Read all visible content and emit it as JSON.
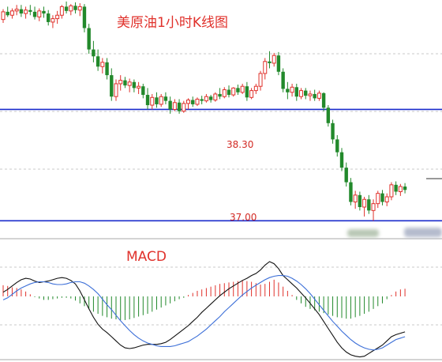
{
  "chart_data": [
    {
      "type": "candlestick",
      "title": "美原油1小时K线图",
      "levels": [
        {
          "label": "38.30",
          "value": 38.3
        },
        {
          "label": "37.00",
          "value": 37.0
        }
      ],
      "price_range": [
        36.92,
        39.55
      ],
      "ohlc": [
        [
          39.35,
          39.47,
          39.31,
          39.44
        ],
        [
          39.44,
          39.5,
          39.38,
          39.4
        ],
        [
          39.4,
          39.48,
          39.36,
          39.45
        ],
        [
          39.45,
          39.52,
          39.4,
          39.47
        ],
        [
          39.47,
          39.52,
          39.38,
          39.42
        ],
        [
          39.42,
          39.5,
          39.36,
          39.46
        ],
        [
          39.46,
          39.52,
          39.4,
          39.44
        ],
        [
          39.44,
          39.5,
          39.35,
          39.38
        ],
        [
          39.38,
          39.48,
          39.33,
          39.45
        ],
        [
          39.45,
          39.5,
          39.37,
          39.42
        ],
        [
          39.42,
          39.46,
          39.28,
          39.32
        ],
        [
          39.32,
          39.4,
          39.25,
          39.36
        ],
        [
          39.36,
          39.45,
          39.3,
          39.4
        ],
        [
          39.4,
          39.52,
          39.36,
          39.5
        ],
        [
          39.5,
          39.56,
          39.42,
          39.45
        ],
        [
          39.45,
          39.53,
          39.4,
          39.51
        ],
        [
          39.51,
          39.55,
          39.42,
          39.46
        ],
        [
          39.46,
          39.54,
          39.39,
          39.5
        ],
        [
          39.5,
          39.53,
          39.2,
          39.25
        ],
        [
          39.25,
          39.3,
          38.95,
          39.0
        ],
        [
          39.0,
          39.1,
          38.85,
          38.92
        ],
        [
          38.92,
          39.0,
          38.75,
          38.8
        ],
        [
          38.8,
          38.9,
          38.72,
          38.85
        ],
        [
          38.85,
          38.9,
          38.65,
          38.7
        ],
        [
          38.7,
          38.78,
          38.4,
          38.45
        ],
        [
          38.45,
          38.65,
          38.4,
          38.6
        ],
        [
          38.6,
          38.7,
          38.52,
          38.64
        ],
        [
          38.64,
          38.68,
          38.55,
          38.58
        ],
        [
          38.58,
          38.66,
          38.5,
          38.62
        ],
        [
          38.62,
          38.65,
          38.5,
          38.55
        ],
        [
          38.55,
          38.62,
          38.48,
          38.57
        ],
        [
          38.57,
          38.6,
          38.43,
          38.47
        ],
        [
          38.47,
          38.55,
          38.3,
          38.35
        ],
        [
          38.35,
          38.48,
          38.3,
          38.44
        ],
        [
          38.44,
          38.5,
          38.32,
          38.36
        ],
        [
          38.36,
          38.48,
          38.33,
          38.45
        ],
        [
          38.45,
          38.5,
          38.36,
          38.4
        ],
        [
          38.4,
          38.45,
          38.25,
          38.3
        ],
        [
          38.3,
          38.42,
          38.28,
          38.38
        ],
        [
          38.38,
          38.42,
          38.25,
          38.28
        ],
        [
          38.28,
          38.4,
          38.26,
          38.37
        ],
        [
          38.37,
          38.43,
          38.3,
          38.41
        ],
        [
          38.41,
          38.45,
          38.33,
          38.36
        ],
        [
          38.36,
          38.44,
          38.34,
          38.42
        ],
        [
          38.42,
          38.46,
          38.36,
          38.4
        ],
        [
          38.4,
          38.48,
          38.38,
          38.45
        ],
        [
          38.45,
          38.47,
          38.38,
          38.41
        ],
        [
          38.41,
          38.5,
          38.39,
          38.48
        ],
        [
          38.48,
          38.55,
          38.42,
          38.45
        ],
        [
          38.45,
          38.56,
          38.43,
          38.53
        ],
        [
          38.53,
          38.58,
          38.44,
          38.47
        ],
        [
          38.47,
          38.56,
          38.45,
          38.55
        ],
        [
          38.55,
          38.59,
          38.47,
          38.5
        ],
        [
          38.5,
          38.6,
          38.48,
          38.57
        ],
        [
          38.57,
          38.62,
          38.4,
          38.44
        ],
        [
          38.44,
          38.55,
          38.42,
          38.52
        ],
        [
          38.52,
          38.6,
          38.48,
          38.57
        ],
        [
          38.57,
          38.75,
          38.52,
          38.72
        ],
        [
          38.72,
          38.9,
          38.65,
          38.86
        ],
        [
          38.86,
          38.98,
          38.78,
          38.84
        ],
        [
          38.84,
          38.96,
          38.8,
          38.93
        ],
        [
          38.93,
          38.97,
          38.7,
          38.74
        ],
        [
          38.74,
          38.78,
          38.5,
          38.54
        ],
        [
          38.54,
          38.62,
          38.42,
          38.5
        ],
        [
          38.5,
          38.6,
          38.45,
          38.56
        ],
        [
          38.56,
          38.6,
          38.4,
          38.45
        ],
        [
          38.45,
          38.55,
          38.42,
          38.52
        ],
        [
          38.52,
          38.55,
          38.42,
          38.46
        ],
        [
          38.46,
          38.52,
          38.4,
          38.48
        ],
        [
          38.48,
          38.53,
          38.4,
          38.43
        ],
        [
          38.43,
          38.52,
          38.4,
          38.49
        ],
        [
          38.49,
          38.5,
          38.28,
          38.32
        ],
        [
          38.32,
          38.35,
          38.1,
          38.14
        ],
        [
          38.14,
          38.18,
          37.9,
          37.95
        ],
        [
          37.95,
          38.0,
          37.75,
          37.8
        ],
        [
          37.8,
          37.85,
          37.58,
          37.62
        ],
        [
          37.62,
          37.68,
          37.4,
          37.45
        ],
        [
          37.45,
          37.5,
          37.18,
          37.22
        ],
        [
          37.22,
          37.35,
          37.14,
          37.3
        ],
        [
          37.3,
          37.34,
          37.12,
          37.16
        ],
        [
          37.16,
          37.28,
          37.05,
          37.25
        ],
        [
          37.25,
          37.3,
          37.08,
          37.12
        ],
        [
          37.12,
          37.25,
          37.0,
          37.2
        ],
        [
          37.2,
          37.35,
          37.15,
          37.32
        ],
        [
          37.32,
          37.36,
          37.18,
          37.22
        ],
        [
          37.22,
          37.32,
          37.17,
          37.28
        ],
        [
          37.28,
          37.45,
          37.24,
          37.42
        ],
        [
          37.42,
          37.46,
          37.3,
          37.34
        ],
        [
          37.34,
          37.43,
          37.29,
          37.4
        ],
        [
          37.4,
          37.44,
          37.32,
          37.36
        ]
      ]
    },
    {
      "type": "bar+line",
      "title": "MACD",
      "histogram": [
        0.16,
        0.15,
        0.13,
        0.12,
        0.1,
        0.07,
        0.03,
        -0.01,
        -0.03,
        -0.05,
        -0.05,
        -0.04,
        -0.03,
        -0.02,
        -0.02,
        -0.03,
        -0.06,
        -0.1,
        -0.14,
        -0.18,
        -0.22,
        -0.25,
        -0.28,
        -0.3,
        -0.32,
        -0.33,
        -0.34,
        -0.34,
        -0.33,
        -0.31,
        -0.29,
        -0.27,
        -0.25,
        -0.22,
        -0.19,
        -0.16,
        -0.13,
        -0.1,
        -0.07,
        -0.04,
        -0.02,
        0.02,
        0.05,
        0.08,
        0.1,
        0.12,
        0.14,
        0.16,
        0.18,
        0.19,
        0.2,
        0.21,
        0.22,
        0.23,
        0.22,
        0.21,
        0.19,
        0.17,
        0.18,
        0.21,
        0.24,
        0.2,
        0.14,
        0.08,
        0.02,
        -0.05,
        -0.1,
        -0.15,
        -0.18,
        -0.2,
        -0.22,
        -0.24,
        -0.26,
        -0.28,
        -0.3,
        -0.31,
        -0.32,
        -0.32,
        -0.3,
        -0.28,
        -0.25,
        -0.22,
        -0.18,
        -0.14,
        -0.1,
        -0.04,
        0.02,
        0.07,
        0.1,
        0.11
      ],
      "series": [
        {
          "values": [
            0.06,
            0.1,
            0.15,
            0.2,
            0.24,
            0.26,
            0.25,
            0.22,
            0.2,
            0.21,
            0.22,
            0.24,
            0.26,
            0.27,
            0.26,
            0.23,
            0.18,
            0.08,
            -0.05,
            -0.18,
            -0.3,
            -0.4,
            -0.47,
            -0.52,
            -0.58,
            -0.64,
            -0.7,
            -0.74,
            -0.75,
            -0.74,
            -0.72,
            -0.7,
            -0.69,
            -0.69,
            -0.69,
            -0.68,
            -0.66,
            -0.62,
            -0.57,
            -0.52,
            -0.47,
            -0.42,
            -0.36,
            -0.3,
            -0.23,
            -0.17,
            -0.11,
            -0.05,
            0.01,
            0.06,
            0.11,
            0.15,
            0.19,
            0.23,
            0.26,
            0.3,
            0.33,
            0.38,
            0.45,
            0.5,
            0.47,
            0.4,
            0.3,
            0.24,
            0.18,
            0.12,
            0.05,
            -0.02,
            -0.1,
            -0.18,
            -0.26,
            -0.36,
            -0.46,
            -0.56,
            -0.66,
            -0.74,
            -0.8,
            -0.84,
            -0.86,
            -0.87,
            -0.86,
            -0.82,
            -0.78,
            -0.74,
            -0.7,
            -0.64,
            -0.58,
            -0.55,
            -0.53,
            -0.51
          ]
        },
        {
          "values": [
            -0.05,
            -0.02,
            0.03,
            0.08,
            0.12,
            0.15,
            0.18,
            0.2,
            0.21,
            0.21,
            0.2,
            0.18,
            0.17,
            0.17,
            0.18,
            0.2,
            0.21,
            0.21,
            0.19,
            0.15,
            0.1,
            0.04,
            -0.04,
            -0.12,
            -0.19,
            -0.27,
            -0.35,
            -0.42,
            -0.49,
            -0.55,
            -0.6,
            -0.64,
            -0.67,
            -0.69,
            -0.71,
            -0.72,
            -0.72,
            -0.72,
            -0.71,
            -0.69,
            -0.67,
            -0.65,
            -0.61,
            -0.57,
            -0.52,
            -0.47,
            -0.41,
            -0.35,
            -0.29,
            -0.22,
            -0.16,
            -0.1,
            -0.04,
            0.02,
            0.07,
            0.12,
            0.16,
            0.2,
            0.24,
            0.27,
            0.29,
            0.3,
            0.3,
            0.29,
            0.26,
            0.22,
            0.17,
            0.11,
            0.04,
            -0.04,
            -0.12,
            -0.2,
            -0.28,
            -0.36,
            -0.43,
            -0.5,
            -0.56,
            -0.62,
            -0.67,
            -0.71,
            -0.74,
            -0.76,
            -0.77,
            -0.76,
            -0.74,
            -0.7,
            -0.66,
            -0.62,
            -0.6,
            -0.58
          ]
        }
      ]
    }
  ],
  "colors": {
    "up": "#e0312b",
    "down": "#22892b",
    "level_line": "#1a2bcc",
    "macd_line": "#111111",
    "signal_line": "#3c6fd8",
    "grid": "#c9c9c9"
  }
}
